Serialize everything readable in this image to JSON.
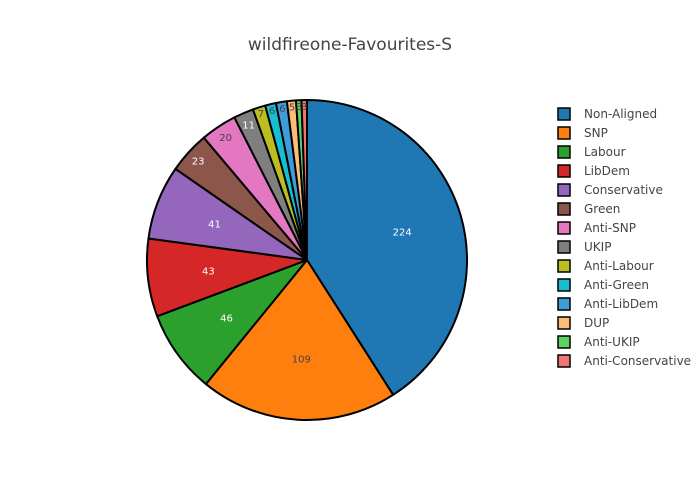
{
  "chart_data": {
    "type": "pie",
    "title": "wildfireone-Favourites-S",
    "legend_position": "right",
    "slices": [
      {
        "label": "Non-Aligned",
        "value": 224,
        "color": "#1f77b4",
        "text_color": "#ffffff"
      },
      {
        "label": "SNP",
        "value": 109,
        "color": "#ff7f0e",
        "text_color": "#444444"
      },
      {
        "label": "Labour",
        "value": 46,
        "color": "#2ca02c",
        "text_color": "#ffffff"
      },
      {
        "label": "LibDem",
        "value": 43,
        "color": "#d62728",
        "text_color": "#ffffff"
      },
      {
        "label": "Conservative",
        "value": 41,
        "color": "#9467bd",
        "text_color": "#ffffff"
      },
      {
        "label": "Green",
        "value": 23,
        "color": "#8c564b",
        "text_color": "#ffffff"
      },
      {
        "label": "Anti-SNP",
        "value": 20,
        "color": "#e377c2",
        "text_color": "#444444"
      },
      {
        "label": "UKIP",
        "value": 11,
        "color": "#7f7f7f",
        "text_color": "#ffffff"
      },
      {
        "label": "Anti-Labour",
        "value": 7,
        "color": "#bcbd22",
        "text_color": "#444444"
      },
      {
        "label": "Anti-Green",
        "value": 6,
        "color": "#17becf",
        "text_color": "#444444"
      },
      {
        "label": "Anti-LibDem",
        "value": 6,
        "color": "#3c9dd9",
        "text_color": "#444444"
      },
      {
        "label": "DUP",
        "value": 5,
        "color": "#ffbb78",
        "text_color": "#444444"
      },
      {
        "label": "Anti-UKIP",
        "value": 3,
        "color": "#5fd35f",
        "text_color": "#444444"
      },
      {
        "label": "Anti-Conservative",
        "value": 3,
        "color": "#f07575",
        "text_color": "#444444"
      }
    ]
  }
}
